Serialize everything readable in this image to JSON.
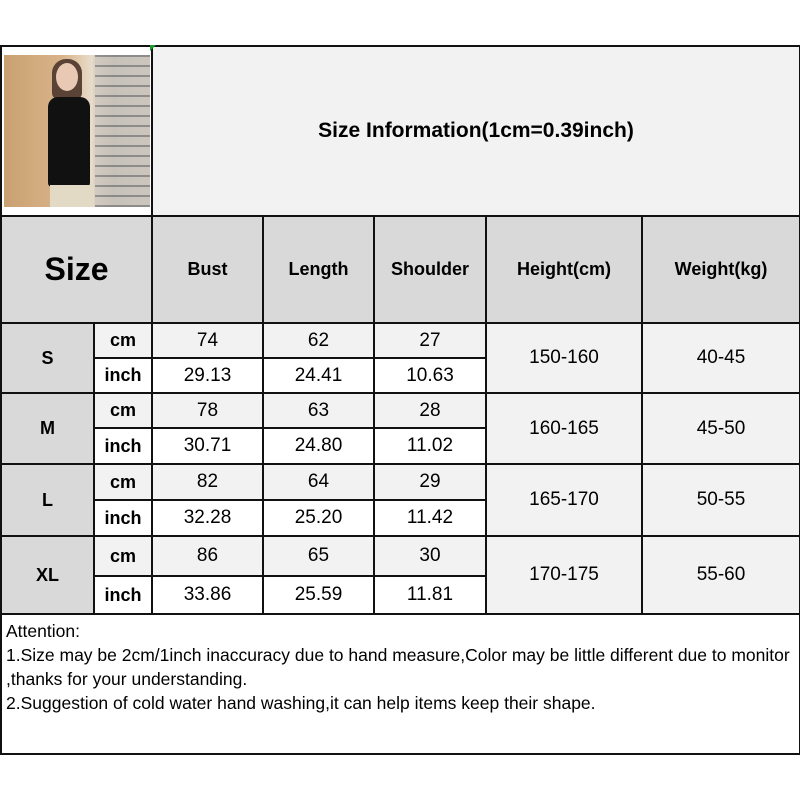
{
  "title": "Size Information(1cm=0.39inch)",
  "headers": {
    "size": "Size",
    "columns": [
      "Bust",
      "Length",
      "Shoulder",
      "Height(cm)",
      "Weight(kg)"
    ]
  },
  "units": {
    "cm": "cm",
    "inch": "inch"
  },
  "rows": [
    {
      "size": "S",
      "cm": [
        "74",
        "62",
        "27"
      ],
      "inch": [
        "29.13",
        "24.41",
        "10.63"
      ],
      "height": "150-160",
      "weight": "40-45"
    },
    {
      "size": "M",
      "cm": [
        "78",
        "63",
        "28"
      ],
      "inch": [
        "30.71",
        "24.80",
        "11.02"
      ],
      "height": "160-165",
      "weight": "45-50"
    },
    {
      "size": "L",
      "cm": [
        "82",
        "64",
        "29"
      ],
      "inch": [
        "32.28",
        "25.20",
        "11.42"
      ],
      "height": "165-170",
      "weight": "50-55"
    },
    {
      "size": "XL",
      "cm": [
        "86",
        "65",
        "30"
      ],
      "inch": [
        "33.86",
        "25.59",
        "11.81"
      ],
      "height": "170-175",
      "weight": "55-60"
    }
  ],
  "attention": {
    "heading": "Attention:",
    "line1": "1.Size may be 2cm/1inch inaccuracy due to hand measure,Color may be little different due to monitor ,thanks for your understanding.",
    "line2": "2.Suggestion of cold water hand washing,it can help items keep their shape."
  },
  "colors": {
    "header_gray": "#d9d9d9",
    "light_gray": "#f2f2f2",
    "border": "#111111"
  }
}
